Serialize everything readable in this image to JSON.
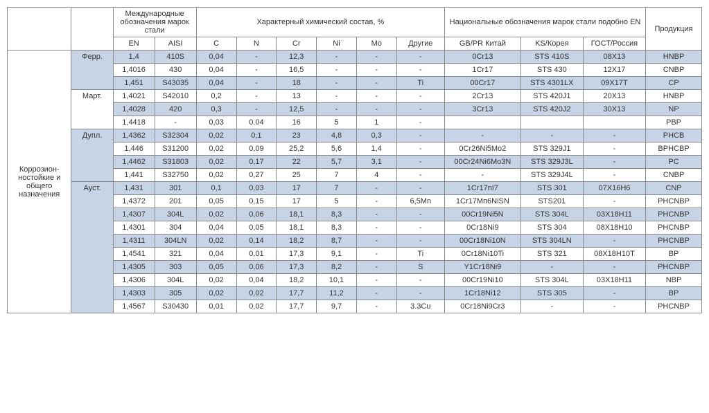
{
  "headers": {
    "intl": "Международные обозначения марок стали",
    "chem": "Характерный химический состав, %",
    "nat": "Национальные обозначения марок стали подобно EN",
    "prod": "Продукция",
    "en": "EN",
    "aisi": "AISI",
    "c": "С",
    "n": "N",
    "cr": "Cr",
    "ni": "Ni",
    "mo": "Mo",
    "other": "Другие",
    "gbpr": "GB/PR Китай",
    "ks": "KS/Корея",
    "gost": "ГОСТ/Россия"
  },
  "leadLabel": "Коррозион-ностойкие и общего назначения",
  "typeLabels": {
    "ferr": "Ферр.",
    "mart": "Март.",
    "dupl": "Дупл.",
    "aust": "Ауст."
  },
  "rows": [
    {
      "shaded": true,
      "type": "ferr",
      "en": "1,4",
      "aisi": "410S",
      "c": "0,04",
      "n": "-",
      "cr": "12,3",
      "ni": "-",
      "mo": "-",
      "other": "-",
      "gbpr": "0Cr13",
      "ks": "STS 410S",
      "gost": "08Х13",
      "prod": "HNBP"
    },
    {
      "shaded": false,
      "en": "1,4016",
      "aisi": "430",
      "c": "0,04",
      "n": "-",
      "cr": "16,5",
      "ni": "-",
      "mo": "-",
      "other": "-",
      "gbpr": "1Cr17",
      "ks": "STS 430",
      "gost": "12X17",
      "prod": "CNBP"
    },
    {
      "shaded": true,
      "en": "1,451",
      "aisi": "S43035",
      "c": "0,04",
      "n": "-",
      "cr": "18",
      "ni": "-",
      "mo": "-",
      "other": "Ti",
      "gbpr": "00Cr17",
      "ks": "STS 4301LX",
      "gost": "09Х17Т",
      "prod": "CP"
    },
    {
      "shaded": false,
      "type": "mart",
      "en": "1,4021",
      "aisi": "S42010",
      "c": "0,2",
      "n": "-",
      "cr": "13",
      "ni": "-",
      "mo": "-",
      "other": "-",
      "gbpr": "2Cr13",
      "ks": "STS 420J1",
      "gost": "20X13",
      "prod": "HNBP"
    },
    {
      "shaded": true,
      "en": "1,4028",
      "aisi": "420",
      "c": "0,3",
      "n": "-",
      "cr": "12,5",
      "ni": "-",
      "mo": "-",
      "other": "-",
      "gbpr": "3Cr13",
      "ks": "STS 420J2",
      "gost": "30Х13",
      "prod": "NP"
    },
    {
      "shaded": false,
      "en": "1,4418",
      "aisi": "-",
      "c": "0,03",
      "n": "0.04",
      "cr": "16",
      "ni": "5",
      "mo": "1",
      "other": "-",
      "gbpr": "",
      "ks": "",
      "gost": "",
      "prod": "PBP"
    },
    {
      "shaded": true,
      "type": "dupl",
      "en": "1,4362",
      "aisi": "S32304",
      "c": "0,02",
      "n": "0,1",
      "cr": "23",
      "ni": "4,8",
      "mo": "0,3",
      "other": "-",
      "gbpr": "-",
      "ks": "-",
      "gost": "-",
      "prod": "PHCB"
    },
    {
      "shaded": false,
      "en": "1,446",
      "aisi": "S31200",
      "c": "0,02",
      "n": "0,09",
      "cr": "25,2",
      "ni": "5,6",
      "mo": "1,4",
      "other": "-",
      "gbpr": "0Cr26Ni5Mo2",
      "ks": "STS 329J1",
      "gost": "-",
      "prod": "BPHCBP"
    },
    {
      "shaded": true,
      "en": "1,4462",
      "aisi": "S31803",
      "c": "0,02",
      "n": "0,17",
      "cr": "22",
      "ni": "5,7",
      "mo": "3,1",
      "other": "-",
      "gbpr": "00Cr24Ni6Mo3N",
      "ks": "STS 329J3L",
      "gost": "-",
      "prod": "PC"
    },
    {
      "shaded": false,
      "en": "1,441",
      "aisi": "S32750",
      "c": "0,02",
      "n": "0,27",
      "cr": "25",
      "ni": "7",
      "mo": "4",
      "other": "-",
      "gbpr": "-",
      "ks": "STS 329J4L",
      "gost": "-",
      "prod": "CNBP"
    },
    {
      "shaded": true,
      "type": "aust",
      "en": "1,431",
      "aisi": "301",
      "c": "0,1",
      "n": "0,03",
      "cr": "17",
      "ni": "7",
      "mo": "-",
      "other": "-",
      "gbpr": "1Cr17nI7",
      "ks": "STS 301",
      "gost": "07Х16Н6",
      "prod": "CNP"
    },
    {
      "shaded": false,
      "en": "1,4372",
      "aisi": "201",
      "c": "0,05",
      "n": "0,15",
      "cr": "17",
      "ni": "5",
      "mo": "-",
      "other": "6,5Mn",
      "gbpr": "1Cr17Mп6NiSN",
      "ks": "STS201",
      "gost": "-",
      "prod": "PHCNBP"
    },
    {
      "shaded": true,
      "en": "1,4307",
      "aisi": "304L",
      "c": "0,02",
      "n": "0,06",
      "cr": "18,1",
      "ni": "8,3",
      "mo": "-",
      "other": "-",
      "gbpr": "00Cr19Ni5N",
      "ks": "STS 304L",
      "gost": "03Х18Н11",
      "prod": "PHCNBP"
    },
    {
      "shaded": false,
      "en": "1,4301",
      "aisi": "304",
      "c": "0,04",
      "n": "0,05",
      "cr": "18,1",
      "ni": "8,3",
      "mo": "-",
      "other": "-",
      "gbpr": "0Cr18Ni9",
      "ks": "STS 304",
      "gost": "08Х18Н10",
      "prod": "PHCNBP"
    },
    {
      "shaded": true,
      "en": "1,4311",
      "aisi": "304LN",
      "c": "0,02",
      "n": "0,14",
      "cr": "18,2",
      "ni": "8,7",
      "mo": "-",
      "other": "-",
      "gbpr": "00Cr18Ni10N",
      "ks": "STS 304LN",
      "gost": "-",
      "prod": "PHCNBP"
    },
    {
      "shaded": false,
      "en": "1,4541",
      "aisi": "321",
      "c": "0,04",
      "n": "0,01",
      "cr": "17,3",
      "ni": "9,1",
      "mo": "-",
      "other": "Ti",
      "gbpr": "0Cr18Ni10Ti",
      "ks": "STS 321",
      "gost": "08Х18Н10Т",
      "prod": "BP"
    },
    {
      "shaded": true,
      "en": "1,4305",
      "aisi": "303",
      "c": "0,05",
      "n": "0,06",
      "cr": "17,3",
      "ni": "8,2",
      "mo": "-",
      "other": "S",
      "gbpr": "Y1Cr18Ni9",
      "ks": "-",
      "gost": "-",
      "prod": "PHCNBP"
    },
    {
      "shaded": false,
      "en": "1,4306",
      "aisi": "304L",
      "c": "0,02",
      "n": "0,04",
      "cr": "18,2",
      "ni": "10,1",
      "mo": "-",
      "other": "-",
      "gbpr": "00Cr19Ni10",
      "ks": "STS 304L",
      "gost": "03Х18Н11",
      "prod": "NBP"
    },
    {
      "shaded": true,
      "en": "1,4303",
      "aisi": "305",
      "c": "0,02",
      "n": "0,02",
      "cr": "17,7",
      "ni": "11,2",
      "mo": "-",
      "other": "-",
      "gbpr": "1Cr18Ni12",
      "ks": "STS 305",
      "gost": "-",
      "prod": "BP"
    },
    {
      "shaded": false,
      "en": "1,4567",
      "aisi": "S30430",
      "c": "0,01",
      "n": "0,02",
      "cr": "17,7",
      "ni": "9,7",
      "mo": "-",
      "other": "3.3Cu",
      "gbpr": "0Cr18Ni9Cr3",
      "ks": "-",
      "gost": "-",
      "prod": "PHCNBP"
    }
  ],
  "colors": {
    "shaded": "#c7d4e5",
    "border": "#888888",
    "text": "#333333",
    "bg": "#ffffff"
  }
}
